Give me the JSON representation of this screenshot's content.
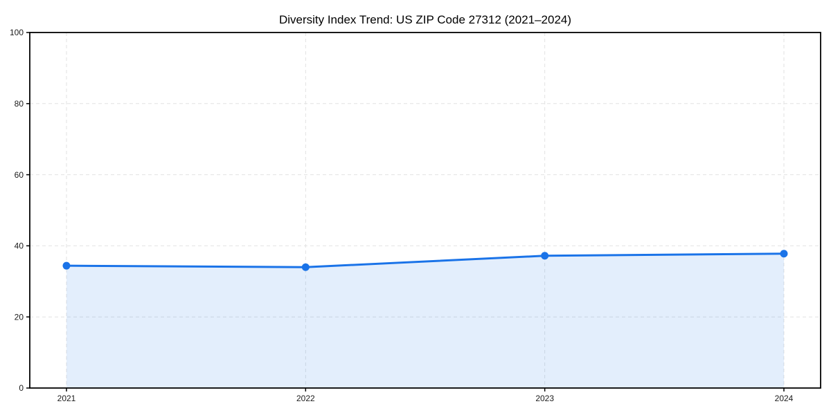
{
  "chart_data": {
    "type": "area",
    "title": "Diversity Index Trend: US ZIP Code 27312 (2021–2024)",
    "x": [
      "2021",
      "2022",
      "2023",
      "2024"
    ],
    "values": [
      34.4,
      34.0,
      37.2,
      37.8
    ],
    "xlabel": "",
    "ylabel": "",
    "ylim": [
      0,
      100
    ],
    "yticks": [
      0,
      20,
      40,
      60,
      80,
      100
    ],
    "grid": true,
    "grid_style": "dashed",
    "legend": "none",
    "marker": "circle",
    "colors": {
      "line": "#1a73e8",
      "fill": "#1a73e8",
      "fill_opacity": 0.12,
      "grid": "#e2e2e2",
      "axis": "#000000",
      "tick_text": "#1a1a1a",
      "title_text": "#000000",
      "background": "#ffffff"
    }
  }
}
